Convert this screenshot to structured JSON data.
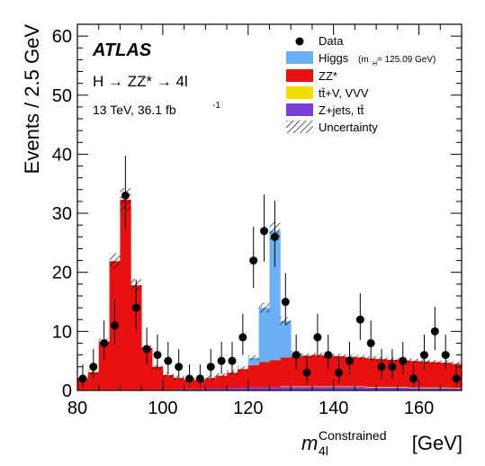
{
  "chart_data": {
    "type": "histogram",
    "title": "ATLAS",
    "process_label": "H → ZZ* → 4l",
    "energy_label": "13 TeV, 36.1 fb",
    "energy_sup": "-1",
    "xlabel": "m",
    "xlabel_sup": "Constrained",
    "xlabel_sub": "4l",
    "xlabel_unit": "[GeV]",
    "ylabel": "Events / 2.5 GeV",
    "xlim": [
      80,
      170
    ],
    "ylim": [
      0,
      62
    ],
    "xticks": [
      80,
      100,
      120,
      140,
      160
    ],
    "yticks": [
      0,
      10,
      20,
      30,
      40,
      50,
      60
    ],
    "bin_width": 2.5,
    "bin_low_edges": [
      80,
      82.5,
      85,
      87.5,
      90,
      92.5,
      95,
      97.5,
      100,
      102.5,
      105,
      107.5,
      110,
      112.5,
      115,
      117.5,
      120,
      122.5,
      125,
      127.5,
      130,
      132.5,
      135,
      137.5,
      140,
      142.5,
      145,
      147.5,
      150,
      152.5,
      155,
      157.5,
      160,
      162.5,
      165,
      167.5
    ],
    "series": [
      {
        "name": "Z+jets, tt̄",
        "color": "#7a3fd6",
        "values": [
          0.1,
          0.1,
          0.1,
          0.1,
          0.1,
          0.1,
          0.1,
          0.1,
          0.1,
          0.2,
          0.2,
          0.2,
          0.3,
          0.3,
          0.4,
          0.4,
          0.5,
          0.5,
          0.5,
          0.6,
          0.6,
          0.6,
          0.6,
          0.6,
          0.6,
          0.6,
          0.6,
          0.5,
          0.5,
          0.5,
          0.5,
          0.4,
          0.4,
          0.4,
          0.4,
          0.3
        ]
      },
      {
        "name": "tt̄+V, VVV",
        "color": "#f0e000",
        "values": [
          0,
          0,
          0,
          0,
          0,
          0,
          0,
          0,
          0,
          0,
          0,
          0,
          0,
          0,
          0,
          0,
          0,
          0,
          0,
          0.1,
          0.1,
          0.1,
          0.1,
          0.1,
          0.1,
          0.1,
          0.1,
          0.1,
          0.1,
          0.1,
          0.1,
          0.1,
          0.1,
          0.1,
          0.1,
          0.1
        ]
      },
      {
        "name": "ZZ*",
        "color": "#e8110f",
        "values": [
          1.9,
          3.0,
          8.2,
          21.8,
          32.2,
          17.7,
          7.1,
          3.9,
          2.5,
          1.9,
          1.6,
          1.6,
          1.8,
          2.2,
          2.6,
          3.2,
          3.8,
          4.3,
          4.6,
          4.9,
          5.1,
          5.2,
          5.3,
          5.2,
          5.1,
          5.0,
          4.9,
          4.8,
          4.7,
          4.6,
          4.5,
          4.5,
          4.4,
          4.3,
          4.2,
          4.1
        ]
      },
      {
        "name": "Higgs",
        "color": "#6baff5",
        "values": [
          0,
          0,
          0,
          0,
          0,
          0,
          0,
          0,
          0,
          0,
          0,
          0,
          0,
          0,
          0,
          0.1,
          1.2,
          9.2,
          21.9,
          6.1,
          0.5,
          0,
          0,
          0,
          0,
          0,
          0,
          0,
          0,
          0,
          0,
          0,
          0,
          0,
          0,
          0
        ]
      }
    ],
    "data_points": {
      "name": "Data",
      "x": [
        81.25,
        83.75,
        86.25,
        88.75,
        91.25,
        93.75,
        96.25,
        98.75,
        101.25,
        103.75,
        106.25,
        108.75,
        111.25,
        113.75,
        116.25,
        118.75,
        121.25,
        123.75,
        126.25,
        128.75,
        131.25,
        133.75,
        136.25,
        138.75,
        141.25,
        143.75,
        146.25,
        148.75,
        151.25,
        153.75,
        156.25,
        158.75,
        161.25,
        163.75,
        166.25,
        168.75
      ],
      "y": [
        2,
        4,
        8,
        11,
        33,
        14,
        7,
        6,
        5,
        4,
        2,
        2,
        4,
        5,
        5,
        9,
        22,
        27,
        26,
        15,
        6,
        3,
        9,
        6,
        3,
        5,
        12,
        8,
        4,
        4,
        5,
        2,
        6,
        10,
        6,
        2
      ]
    },
    "uncertainty_label": "Uncertainty",
    "higgs_mass_label": "(m",
    "higgs_mass_sub": "H",
    "higgs_mass_value": " = 125.09 GeV)",
    "legend": [
      "Data",
      "Higgs",
      "ZZ*",
      "tt̄+V, VVV",
      "Z+jets, tt̄",
      "Uncertainty"
    ],
    "legend_position": "top-right",
    "grid": false
  }
}
